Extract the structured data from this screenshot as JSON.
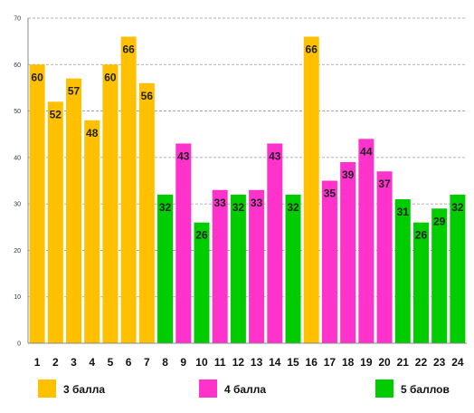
{
  "chart_data": {
    "type": "bar",
    "categories": [
      "1",
      "2",
      "3",
      "4",
      "5",
      "6",
      "7",
      "8",
      "9",
      "10",
      "11",
      "12",
      "13",
      "14",
      "15",
      "16",
      "17",
      "18",
      "19",
      "20",
      "21",
      "22",
      "23",
      "24"
    ],
    "values": [
      60,
      52,
      57,
      48,
      60,
      66,
      56,
      32,
      43,
      26,
      33,
      32,
      33,
      43,
      32,
      66,
      35,
      39,
      44,
      37,
      31,
      26,
      29,
      32
    ],
    "groups": [
      "3 балла",
      "3 балла",
      "3 балла",
      "3 балла",
      "3 балла",
      "3 балла",
      "3 балла",
      "5 баллов",
      "4 балла",
      "5 баллов",
      "4 балла",
      "5 баллов",
      "4 балла",
      "4 балла",
      "5 баллов",
      "3 балла",
      "4 балла",
      "4 балла",
      "4 балла",
      "4 балла",
      "5 баллов",
      "5 баллов",
      "5 баллов",
      "5 баллов"
    ],
    "ylim": [
      0,
      70
    ],
    "yticks": [
      0,
      10,
      20,
      30,
      40,
      50,
      60,
      70
    ],
    "grid": true,
    "legend": [
      {
        "name": "3 балла",
        "color": "#FFC000"
      },
      {
        "name": "4 балла",
        "color": "#FF33CC"
      },
      {
        "name": "5 баллов",
        "color": "#00CC00"
      }
    ],
    "legend_position": "bottom"
  }
}
